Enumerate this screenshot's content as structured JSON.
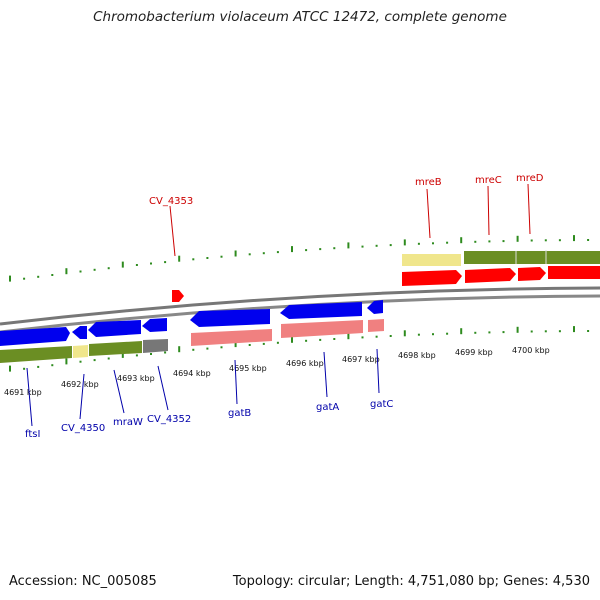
{
  "title": "Chromobacterium violaceum ATCC 12472, complete genome",
  "footer": {
    "accession": "Accession: NC_005085",
    "summary": "Topology: circular; Length: 4,751,080 bp; Genes: 4,530"
  },
  "colors": {
    "top_label": "#cc0000",
    "bottom_label": "#0000aa",
    "tick": "#2e8b1e",
    "forward_gene": "#ff0000",
    "reverse_gene": "#0000ee",
    "forward_cds": "#6b8e23",
    "reverse_cds": "#f08080",
    "pseudo": "#f0e68c",
    "backbone": "#888888"
  },
  "scale_labels": [
    "4691 kbp",
    "4692 kbp",
    "4693 kbp",
    "4694 kbp",
    "4695 kbp",
    "4696 kbp",
    "4697 kbp",
    "4698 kbp",
    "4699 kbp",
    "4700 kbp"
  ],
  "top_genes": [
    "CV_4353",
    "mreB",
    "mreC",
    "mreD"
  ],
  "bottom_genes": [
    "ftsI",
    "CV_4350",
    "mraW",
    "CV_4352",
    "gatB",
    "gatA",
    "gatC"
  ]
}
